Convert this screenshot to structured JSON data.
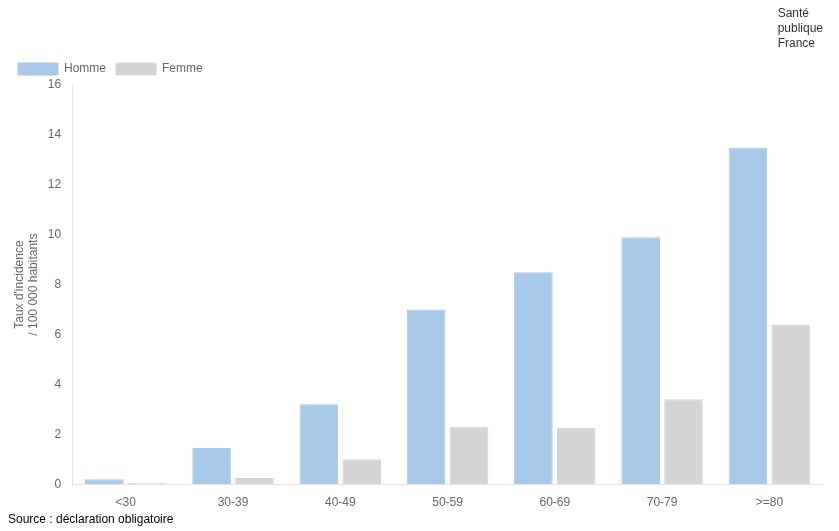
{
  "chart_data": {
    "type": "bar",
    "subtitle": "Source : déclaration obligatoire",
    "ylabel": [
      "Taux d'incidence",
      "/ 100 000 habitants"
    ],
    "annotations": [
      "Santé",
      "publique",
      "France"
    ],
    "categories": [
      "<30",
      "30-39",
      "40-49",
      "50-59",
      "60-69",
      "70-79",
      ">=80"
    ],
    "series": [
      {
        "name": "Homme",
        "color": "#a8c8e8",
        "values": [
          0.2,
          1.45,
          3.2,
          7.0,
          8.5,
          9.9,
          13.5
        ]
      },
      {
        "name": "Femme",
        "color": "#d4d4d4",
        "values": [
          0.05,
          0.25,
          1.0,
          2.3,
          2.25,
          3.4,
          6.4
        ]
      }
    ],
    "ylim": [
      0,
      16
    ],
    "yticks": [
      0,
      2,
      4,
      6,
      8,
      10,
      12,
      14,
      16
    ],
    "grid": false,
    "legend": "upper left"
  }
}
